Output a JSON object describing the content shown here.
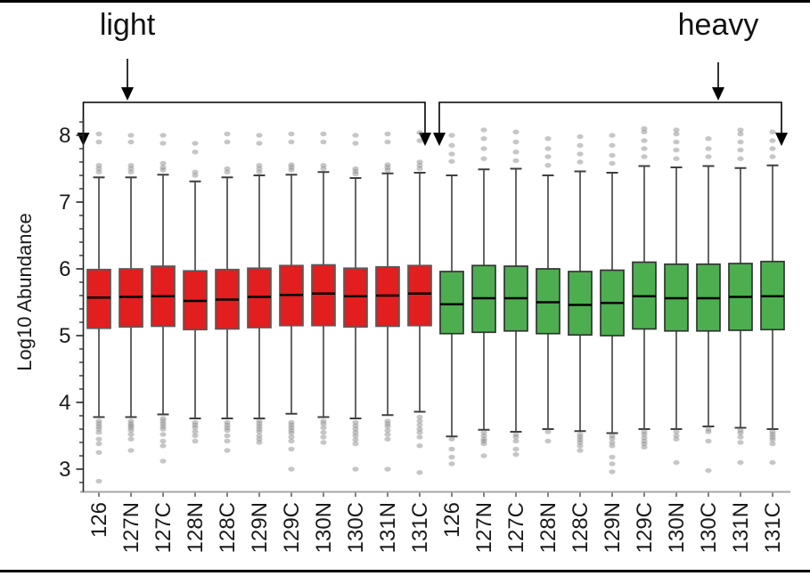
{
  "annotations": {
    "light_label": "light",
    "heavy_label": "heavy"
  },
  "chart_data": {
    "type": "boxplot",
    "title": "",
    "xlabel": "",
    "ylabel": "Log10 Abundance",
    "y_ticks": [
      8,
      7,
      6,
      5,
      4,
      3
    ],
    "ylim": [
      2.67,
      8.25
    ],
    "y_minor_step": 0.2,
    "grid": false,
    "legend_position": "top-brackets",
    "categories": [
      "126",
      "127N",
      "127C",
      "128N",
      "128C",
      "129N",
      "129C",
      "130N",
      "130C",
      "131N",
      "131C"
    ],
    "groups": [
      {
        "name": "light",
        "fill": "#E21E1E",
        "edge": "#595959",
        "boxes": [
          {
            "label": "126",
            "whisker_low": 3.78,
            "q1": 5.11,
            "median": 5.57,
            "q3": 5.99,
            "whisker_high": 7.37,
            "outliers_high": [
              7.45,
              7.5,
              7.55,
              7.9,
              8.02
            ],
            "outliers_low": [
              3.72,
              3.68,
              3.64,
              3.6,
              3.55,
              3.45,
              3.38,
              3.25,
              2.82
            ]
          },
          {
            "label": "127N",
            "whisker_low": 3.78,
            "q1": 5.13,
            "median": 5.58,
            "q3": 6.0,
            "whisker_high": 7.37,
            "outliers_high": [
              7.45,
              7.5,
              7.55,
              7.9,
              8.0
            ],
            "outliers_low": [
              3.72,
              3.68,
              3.65,
              3.62,
              3.58,
              3.52,
              3.45,
              3.28
            ]
          },
          {
            "label": "127C",
            "whisker_low": 3.82,
            "q1": 5.14,
            "median": 5.59,
            "q3": 6.04,
            "whisker_high": 7.41,
            "outliers_high": [
              7.48,
              7.52,
              7.58,
              7.88,
              8.0
            ],
            "outliers_low": [
              3.76,
              3.72,
              3.68,
              3.64,
              3.6,
              3.52,
              3.42,
              3.35,
              3.12
            ]
          },
          {
            "label": "128N",
            "whisker_low": 3.76,
            "q1": 5.09,
            "median": 5.52,
            "q3": 5.97,
            "whisker_high": 7.31,
            "outliers_high": [
              7.4,
              7.45,
              7.75,
              7.88
            ],
            "outliers_low": [
              3.7,
              3.66,
              3.62,
              3.56,
              3.5,
              3.42
            ]
          },
          {
            "label": "128C",
            "whisker_low": 3.76,
            "q1": 5.1,
            "median": 5.54,
            "q3": 5.99,
            "whisker_high": 7.37,
            "outliers_high": [
              7.45,
              7.5,
              7.9,
              8.02
            ],
            "outliers_low": [
              3.7,
              3.66,
              3.62,
              3.58,
              3.5,
              3.42,
              3.28
            ]
          },
          {
            "label": "129N",
            "whisker_low": 3.76,
            "q1": 5.12,
            "median": 5.58,
            "q3": 6.01,
            "whisker_high": 7.4,
            "outliers_high": [
              7.45,
              7.5,
              7.55,
              7.88,
              8.0
            ],
            "outliers_low": [
              3.72,
              3.68,
              3.64,
              3.6,
              3.56,
              3.5,
              3.45,
              3.4
            ]
          },
          {
            "label": "129C",
            "whisker_low": 3.83,
            "q1": 5.15,
            "median": 5.61,
            "q3": 6.05,
            "whisker_high": 7.41,
            "outliers_high": [
              7.48,
              7.52,
              7.56,
              7.9,
              8.02
            ],
            "outliers_low": [
              3.7,
              3.66,
              3.62,
              3.58,
              3.54,
              3.48,
              3.42,
              3.3,
              3.0
            ]
          },
          {
            "label": "130N",
            "whisker_low": 3.78,
            "q1": 5.15,
            "median": 5.63,
            "q3": 6.06,
            "whisker_high": 7.45,
            "outliers_high": [
              7.5,
              7.55,
              7.9,
              8.02
            ],
            "outliers_low": [
              3.72,
              3.68,
              3.62,
              3.55,
              3.48,
              3.4
            ]
          },
          {
            "label": "130C",
            "whisker_low": 3.76,
            "q1": 5.13,
            "median": 5.59,
            "q3": 6.01,
            "whisker_high": 7.36,
            "outliers_high": [
              7.42,
              7.46,
              7.5,
              7.88,
              8.0
            ],
            "outliers_low": [
              3.7,
              3.65,
              3.6,
              3.55,
              3.5,
              3.44,
              3.38,
              3.0
            ]
          },
          {
            "label": "131N",
            "whisker_low": 3.81,
            "q1": 5.14,
            "median": 5.6,
            "q3": 6.03,
            "whisker_high": 7.43,
            "outliers_high": [
              7.48,
              7.52,
              7.56,
              7.9,
              8.02
            ],
            "outliers_low": [
              3.72,
              3.68,
              3.64,
              3.58,
              3.52,
              3.45,
              3.0
            ]
          },
          {
            "label": "131C",
            "whisker_low": 3.86,
            "q1": 5.15,
            "median": 5.63,
            "q3": 6.05,
            "whisker_high": 7.44,
            "outliers_high": [
              7.5,
              7.55,
              7.6,
              7.92,
              8.04
            ],
            "outliers_low": [
              3.78,
              3.72,
              3.66,
              3.6,
              3.55,
              3.48,
              3.35,
              2.95
            ]
          }
        ]
      },
      {
        "name": "heavy",
        "fill": "#4DAE50",
        "edge": "#333333",
        "boxes": [
          {
            "label": "126",
            "whisker_low": 3.49,
            "q1": 5.03,
            "median": 5.47,
            "q3": 5.96,
            "whisker_high": 7.4,
            "outliers_high": [
              7.61,
              7.72,
              7.85,
              8.0
            ],
            "outliers_low": [
              3.45,
              3.3,
              3.18,
              3.08
            ]
          },
          {
            "label": "127N",
            "whisker_low": 3.59,
            "q1": 5.05,
            "median": 5.56,
            "q3": 6.05,
            "whisker_high": 7.49,
            "outliers_high": [
              7.65,
              7.8,
              7.95,
              8.08
            ],
            "outliers_low": [
              3.55,
              3.5,
              3.45,
              3.42,
              3.38,
              3.2
            ]
          },
          {
            "label": "127C",
            "whisker_low": 3.56,
            "q1": 5.07,
            "median": 5.56,
            "q3": 6.04,
            "whisker_high": 7.5,
            "outliers_high": [
              7.62,
              7.75,
              7.9,
              8.05
            ],
            "outliers_low": [
              3.52,
              3.48,
              3.42,
              3.3,
              3.22
            ]
          },
          {
            "label": "128N",
            "whisker_low": 3.6,
            "q1": 5.03,
            "median": 5.5,
            "q3": 6.0,
            "whisker_high": 7.4,
            "outliers_high": [
              7.55,
              7.68,
              7.8,
              7.95
            ],
            "outliers_low": [
              3.56,
              3.42
            ]
          },
          {
            "label": "128C",
            "whisker_low": 3.57,
            "q1": 5.01,
            "median": 5.46,
            "q3": 5.96,
            "whisker_high": 7.46,
            "outliers_high": [
              7.6,
              7.72,
              7.85,
              7.98
            ],
            "outliers_low": [
              3.52,
              3.48,
              3.44,
              3.4,
              3.35,
              3.28
            ]
          },
          {
            "label": "129N",
            "whisker_low": 3.54,
            "q1": 5.0,
            "median": 5.49,
            "q3": 5.98,
            "whisker_high": 7.44,
            "outliers_high": [
              7.58,
              7.7,
              7.85,
              8.0
            ],
            "outliers_low": [
              3.5,
              3.46,
              3.4,
              3.35,
              3.18,
              3.08,
              2.96
            ]
          },
          {
            "label": "129C",
            "whisker_low": 3.6,
            "q1": 5.1,
            "median": 5.59,
            "q3": 6.1,
            "whisker_high": 7.54,
            "outliers_high": [
              7.68,
              7.8,
              7.92,
              8.05,
              8.1
            ],
            "outliers_low": [
              3.56,
              3.52,
              3.47,
              3.42,
              3.38,
              3.33
            ]
          },
          {
            "label": "130N",
            "whisker_low": 3.6,
            "q1": 5.07,
            "median": 5.56,
            "q3": 6.07,
            "whisker_high": 7.52,
            "outliers_high": [
              7.65,
              7.78,
              7.9,
              8.02,
              8.08
            ],
            "outliers_low": [
              3.56,
              3.5,
              3.45,
              3.1
            ]
          },
          {
            "label": "130C",
            "whisker_low": 3.64,
            "q1": 5.07,
            "median": 5.56,
            "q3": 6.07,
            "whisker_high": 7.54,
            "outliers_high": [
              7.68,
              7.8,
              7.95
            ],
            "outliers_low": [
              3.6,
              3.56,
              3.42,
              2.98
            ]
          },
          {
            "label": "131N",
            "whisker_low": 3.62,
            "q1": 5.08,
            "median": 5.58,
            "q3": 6.08,
            "whisker_high": 7.51,
            "outliers_high": [
              7.65,
              7.78,
              7.9,
              8.02,
              8.08
            ],
            "outliers_low": [
              3.58,
              3.54,
              3.48,
              3.4,
              3.1
            ]
          },
          {
            "label": "131C",
            "whisker_low": 3.6,
            "q1": 5.09,
            "median": 5.59,
            "q3": 6.11,
            "whisker_high": 7.55,
            "outliers_high": [
              7.68,
              7.8,
              7.92,
              8.05
            ],
            "outliers_low": [
              3.56,
              3.52,
              3.48,
              3.44,
              3.38,
              3.1
            ]
          }
        ]
      }
    ]
  },
  "colors": {
    "light_fill": "#E21E1E",
    "heavy_fill": "#4DAE50",
    "y_axis": "#262626",
    "x_axis": "#A6A6A6",
    "x_tick": "#595959",
    "whisker": "#3F3F3F",
    "median": "#000000",
    "outlier": "#808080",
    "annotation": "#000000",
    "rule": "#000000"
  }
}
